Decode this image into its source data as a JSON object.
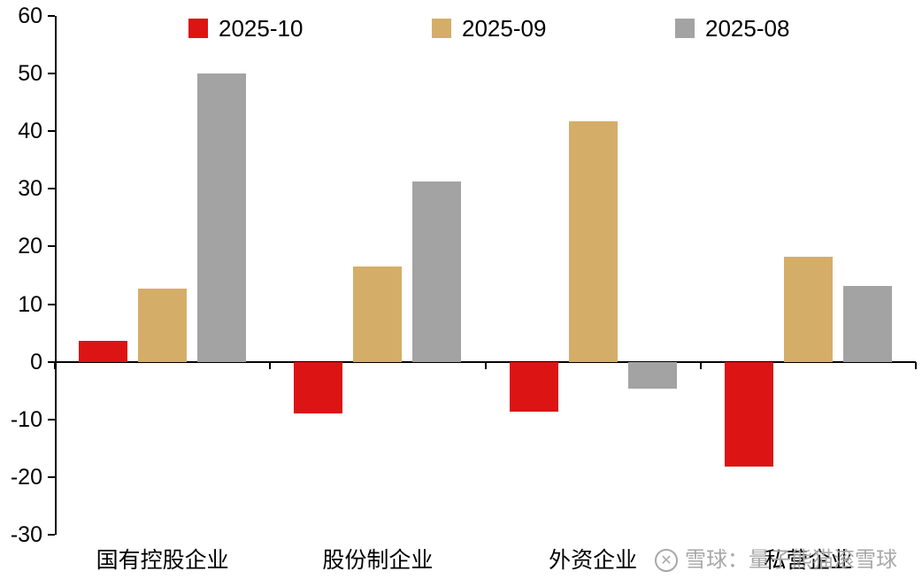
{
  "watermark": {
    "text": "雪球：量子熊猫滚雪球",
    "icon_glyph": "✕",
    "color": "#a8a8a8"
  },
  "colors": {
    "series_red": "#dc1414",
    "series_gold": "#d4ae68",
    "series_gray": "#a3a3a3",
    "axis": "#000000"
  },
  "chart_data": {
    "type": "bar",
    "categories": [
      "国有控股企业",
      "股份制企业",
      "外资企业",
      "私营企业"
    ],
    "series": [
      {
        "name": "2025-10",
        "color": "#dc1414",
        "values": [
          3.6,
          -9.0,
          -8.7,
          -18.2
        ]
      },
      {
        "name": "2025-09",
        "color": "#d4ae68",
        "values": [
          12.7,
          16.5,
          41.7,
          18.2
        ]
      },
      {
        "name": "2025-08",
        "color": "#a3a3a3",
        "values": [
          50.0,
          31.3,
          -4.7,
          13.2
        ]
      }
    ],
    "title": "",
    "xlabel": "",
    "ylabel": "",
    "ylim": [
      -30,
      60
    ],
    "ytick_step": 10,
    "grid": false,
    "legend_position": "top"
  }
}
